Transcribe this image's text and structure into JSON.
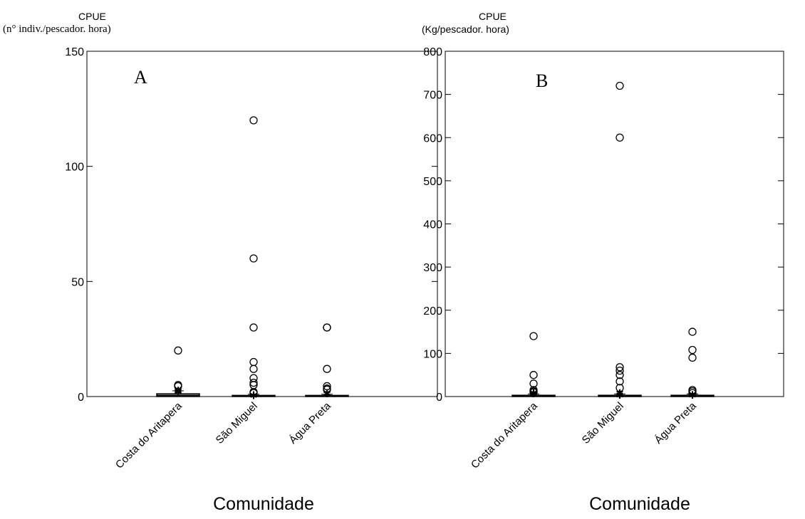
{
  "chart_data": [
    {
      "type": "box",
      "panel_label": "A",
      "ylabel_line1": "CPUE",
      "ylabel_line2": "(n° indiv./pescador. hora)",
      "xlabel": "Comunidade",
      "ylim": [
        0,
        150
      ],
      "yticks": [
        0,
        50,
        100,
        150
      ],
      "categories": [
        "Costa do Aritapera",
        "São Miguel",
        "Água Preta"
      ],
      "box_stats": [
        {
          "q1": 0,
          "median": 0.5,
          "q3": 1.2,
          "whisker_low": 0,
          "whisker_high": 2.5
        },
        {
          "q1": 0,
          "median": 0.2,
          "q3": 0.5,
          "whisker_low": 0,
          "whisker_high": 1
        },
        {
          "q1": 0,
          "median": 0.2,
          "q3": 0.5,
          "whisker_low": 0,
          "whisker_high": 1
        }
      ],
      "far_outliers": [
        [
          20,
          5,
          4.5
        ],
        [
          120,
          60,
          30,
          15,
          12,
          8,
          6,
          5,
          2,
          1.5
        ],
        [
          30,
          30,
          12,
          4.5,
          3.5,
          3
        ]
      ],
      "near_outliers": [
        [
          3,
          2.5
        ],
        [
          0.8
        ],
        [
          1.5
        ]
      ]
    },
    {
      "type": "box",
      "panel_label": "B",
      "ylabel_line1": "CPUE",
      "ylabel_line2": "(Kg/pescador. hora)",
      "xlabel": "Comunidade",
      "ylim": [
        0,
        800
      ],
      "yticks": [
        0,
        100,
        200,
        300,
        400,
        500,
        600,
        700,
        800
      ],
      "categories": [
        "Costa do Aritapera",
        "São Miguel",
        "Água Preta"
      ],
      "box_stats": [
        {
          "q1": 0,
          "median": 1,
          "q3": 3,
          "whisker_low": 0,
          "whisker_high": 6
        },
        {
          "q1": 0,
          "median": 1,
          "q3": 3,
          "whisker_low": 0,
          "whisker_high": 6
        },
        {
          "q1": 0,
          "median": 1,
          "q3": 3,
          "whisker_low": 0,
          "whisker_high": 6
        }
      ],
      "far_outliers": [
        [
          140,
          50,
          30,
          15,
          12,
          10
        ],
        [
          720,
          600,
          68,
          60,
          50,
          35,
          20
        ],
        [
          150,
          108,
          90,
          15,
          12,
          8
        ]
      ],
      "near_outliers": [
        [
          10,
          8
        ],
        [
          10,
          5
        ],
        [
          5
        ]
      ]
    }
  ]
}
